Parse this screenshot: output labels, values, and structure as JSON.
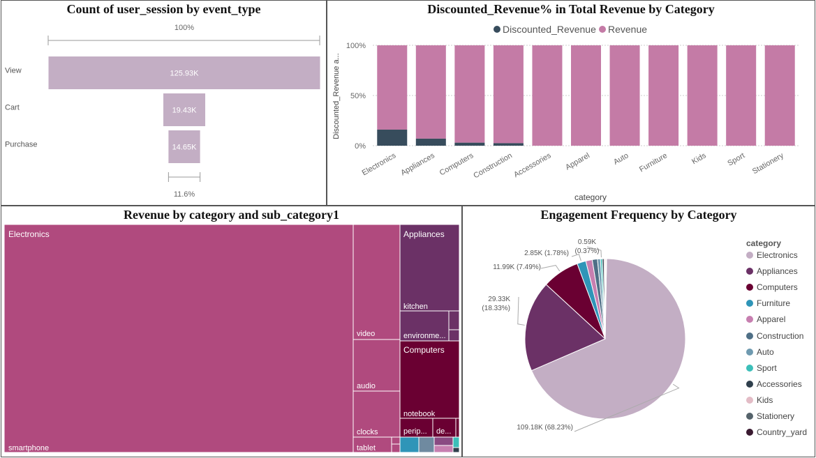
{
  "colors": {
    "electronics": "#b04a7e",
    "appliances": "#6b3166",
    "computers": "#6a0032",
    "discounted": "#374c5c",
    "revenue": "#c47ba6",
    "funnel": "#c3aec4",
    "pie_electronics": "#c3aec4"
  },
  "funnel": {
    "title": "Count of user_session by event_type",
    "top_pct": "100%",
    "bottom_pct": "11.6%",
    "chart_data": {
      "type": "bar",
      "categories": [
        "View",
        "Cart",
        "Purchase"
      ],
      "values": [
        125930,
        19430,
        14650
      ],
      "labels": [
        "125.93K",
        "19.43K",
        "14.65K"
      ]
    }
  },
  "stacked": {
    "title": "Discounted_Revenue% in Total Revenue by Category",
    "ylabel": "Discounted_Revenue a...",
    "xlabel": "category",
    "ticks": [
      "100%",
      "50%",
      "0%"
    ],
    "legend": [
      "Discounted_Revenue",
      "Revenue"
    ],
    "chart_data": {
      "type": "bar",
      "stacked": true,
      "percent": true,
      "categories": [
        "Electronics",
        "Appliances",
        "Computers",
        "Construction",
        "Accessories",
        "Apparel",
        "Auto",
        "Furniture",
        "Kids",
        "Sport",
        "Stationery"
      ],
      "series": [
        {
          "name": "Discounted_Revenue",
          "values": [
            16,
            7,
            3,
            2.5,
            0,
            0,
            0,
            0,
            0,
            0,
            0
          ]
        },
        {
          "name": "Revenue",
          "values": [
            84,
            93,
            97,
            97.5,
            100,
            100,
            100,
            100,
            100,
            100,
            100
          ]
        }
      ],
      "ylim": [
        0,
        100
      ]
    }
  },
  "treemap": {
    "title": "Revenue by category and sub_category1",
    "labels": {
      "electronics": "Electronics",
      "smartphone": "smartphone",
      "video": "video",
      "audio": "audio",
      "clocks": "clocks",
      "tablet": "tablet",
      "appliances": "Appliances",
      "kitchen": "kitchen",
      "environment": "environme...",
      "computers": "Computers",
      "notebook": "notebook",
      "peripherals": "perip...",
      "desktop": "de..."
    }
  },
  "pie": {
    "title": "Engagement Frequency by Category",
    "legend_title": "category",
    "chart_data": {
      "type": "pie",
      "categories": [
        "Electronics",
        "Appliances",
        "Computers",
        "Furniture",
        "Apparel",
        "Construction",
        "Auto",
        "Sport",
        "Accessories",
        "Kids",
        "Stationery",
        "Country_yard"
      ],
      "values": [
        68.23,
        18.33,
        7.49,
        1.78,
        1.3,
        1.05,
        0.6,
        0.37,
        0.35,
        0.25,
        0.15,
        0.1
      ],
      "colors": [
        "#c3aec4",
        "#6b3166",
        "#6a0032",
        "#2f95b8",
        "#c77fb0",
        "#4f6f86",
        "#6f9ab0",
        "#3cbfb9",
        "#2f3f4c",
        "#e3bcc6",
        "#55636b",
        "#3a1a30"
      ],
      "data_labels": [
        {
          "line1": "109.18K (68.23%)",
          "line2": ""
        },
        {
          "line1": "29.33K",
          "line2": "(18.33%)"
        },
        {
          "line1": "11.99K (7.49%)",
          "line2": ""
        },
        {
          "line1": "2.85K (1.78%)",
          "line2": ""
        },
        {
          "line1": "0.59K",
          "line2": "(0.37%)"
        }
      ]
    }
  }
}
